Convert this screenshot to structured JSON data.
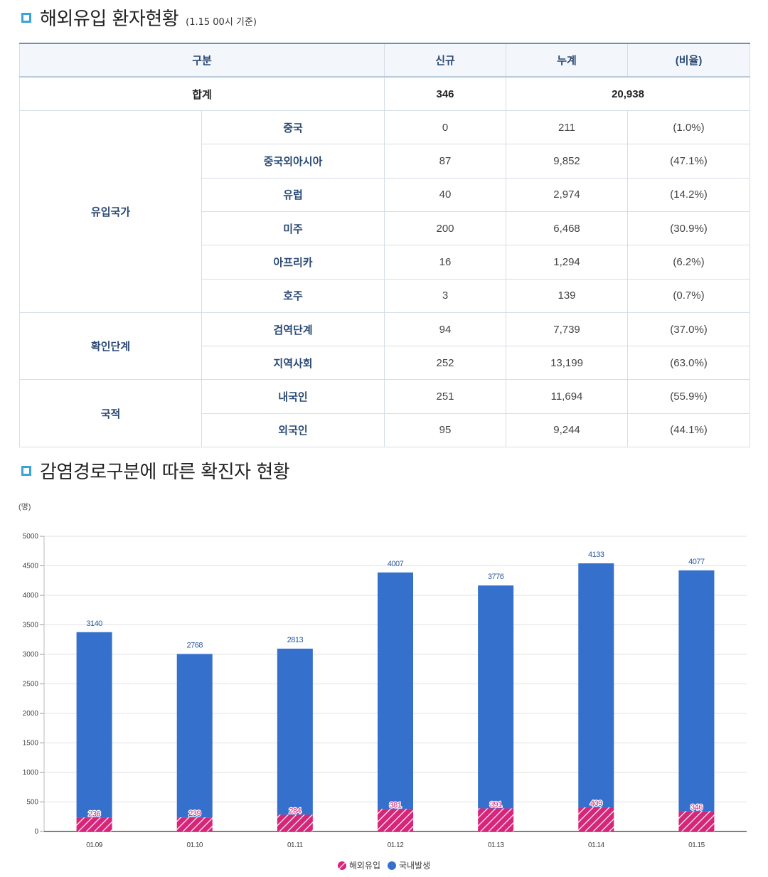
{
  "section1": {
    "title": "해외유입 환자현황",
    "subtitle": "(1.15 00시 기준)"
  },
  "table": {
    "headers": [
      "구분",
      "신규",
      "누계",
      "(비율)"
    ],
    "total": {
      "label": "합계",
      "new": "346",
      "cumulative": "20,938"
    },
    "groups": [
      {
        "label": "유입국가",
        "rows": [
          {
            "label": "중국",
            "new": "0",
            "cum": "211",
            "ratio": "(1.0%)"
          },
          {
            "label": "중국외아시아",
            "new": "87",
            "cum": "9,852",
            "ratio": "(47.1%)"
          },
          {
            "label": "유럽",
            "new": "40",
            "cum": "2,974",
            "ratio": "(14.2%)"
          },
          {
            "label": "미주",
            "new": "200",
            "cum": "6,468",
            "ratio": "(30.9%)"
          },
          {
            "label": "아프리카",
            "new": "16",
            "cum": "1,294",
            "ratio": "(6.2%)"
          },
          {
            "label": "호주",
            "new": "3",
            "cum": "139",
            "ratio": "(0.7%)"
          }
        ]
      },
      {
        "label": "확인단계",
        "rows": [
          {
            "label": "검역단계",
            "new": "94",
            "cum": "7,739",
            "ratio": "(37.0%)"
          },
          {
            "label": "지역사회",
            "new": "252",
            "cum": "13,199",
            "ratio": "(63.0%)"
          }
        ]
      },
      {
        "label": "국적",
        "rows": [
          {
            "label": "내국인",
            "new": "251",
            "cum": "11,694",
            "ratio": "(55.9%)"
          },
          {
            "label": "외국인",
            "new": "95",
            "cum": "9,244",
            "ratio": "(44.1%)"
          }
        ]
      }
    ]
  },
  "section2": {
    "title": "감염경로구분에 따른 확진자 현황"
  },
  "chart_data": {
    "type": "bar",
    "stacked": true,
    "unit_label": "(명)",
    "categories": [
      "01.09",
      "01.10",
      "01.11",
      "01.12",
      "01.13",
      "01.14",
      "01.15"
    ],
    "series": [
      {
        "name": "해외유입",
        "values": [
          236,
          239,
          284,
          381,
          391,
          409,
          346
        ],
        "color": "#d6267a"
      },
      {
        "name": "국내발생",
        "values": [
          3140,
          2768,
          2813,
          4007,
          3776,
          4133,
          4077
        ],
        "color": "#3470cc"
      }
    ],
    "ylim": [
      0,
      5000
    ],
    "yticks": [
      0,
      500,
      1000,
      1500,
      2000,
      2500,
      3000,
      3500,
      4000,
      4500,
      5000
    ],
    "grid": true,
    "legend_position": "bottom-center"
  }
}
